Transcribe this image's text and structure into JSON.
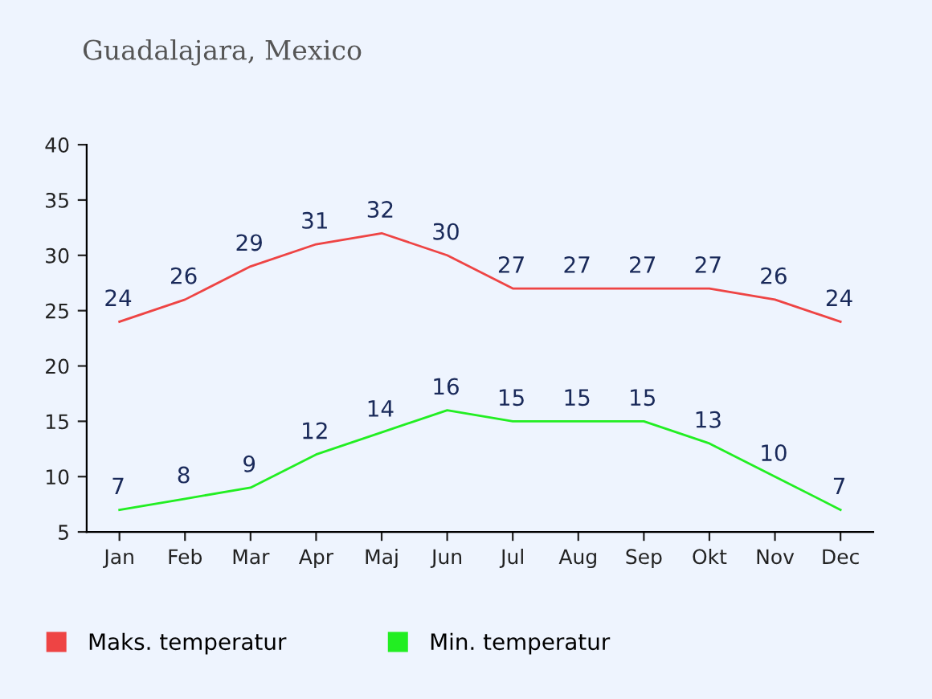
{
  "chart_data": {
    "type": "line",
    "title": "Guadalajara, Mexico",
    "categories": [
      "Jan",
      "Feb",
      "Mar",
      "Apr",
      "Maj",
      "Jun",
      "Jul",
      "Aug",
      "Sep",
      "Okt",
      "Nov",
      "Dec"
    ],
    "series": [
      {
        "name": "Maks. temperatur",
        "color": "#ee4444",
        "values": [
          24,
          26,
          29,
          31,
          32,
          30,
          27,
          27,
          27,
          27,
          26,
          24
        ]
      },
      {
        "name": "Min. temperatur",
        "color": "#22ee22",
        "values": [
          7,
          8,
          9,
          12,
          14,
          16,
          15,
          15,
          15,
          13,
          10,
          7
        ]
      }
    ],
    "ylim": [
      5,
      40
    ],
    "yticks": [
      5,
      10,
      15,
      20,
      25,
      30,
      35,
      40
    ],
    "data_labels": true,
    "grid": false,
    "legend": "bottom",
    "marker": "none",
    "line_style": "solid"
  }
}
